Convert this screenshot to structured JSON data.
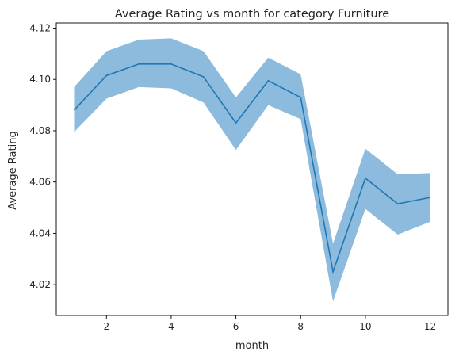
{
  "chart_data": {
    "type": "line",
    "title": "Average Rating vs month for category Furniture",
    "xlabel": "month",
    "ylabel": "Average Rating",
    "xlim": [
      0.45,
      12.55
    ],
    "ylim": [
      4.008,
      4.122
    ],
    "xticks": [
      2,
      4,
      6,
      8,
      10,
      12
    ],
    "yticks": [
      4.02,
      4.04,
      4.06,
      4.08,
      4.1,
      4.12
    ],
    "ytick_labels": [
      "4.02",
      "4.04",
      "4.06",
      "4.08",
      "4.10",
      "4.12"
    ],
    "grid": false,
    "series": [
      {
        "x": [
          1,
          2,
          3,
          4,
          5,
          6,
          7,
          8,
          9,
          10,
          11,
          12
        ],
        "values": [
          4.088,
          4.1015,
          4.106,
          4.106,
          4.101,
          4.083,
          4.0995,
          4.093,
          4.025,
          4.0615,
          4.0515,
          4.054
        ],
        "lower": [
          4.0795,
          4.0925,
          4.097,
          4.0965,
          4.091,
          4.0725,
          4.09,
          4.0845,
          4.0135,
          4.0495,
          4.0395,
          4.0445
        ],
        "upper": [
          4.097,
          4.111,
          4.1155,
          4.116,
          4.111,
          4.093,
          4.1085,
          4.102,
          4.036,
          4.073,
          4.063,
          4.0635
        ],
        "color": "#1f77b4",
        "band_color": "#8dbbdd"
      }
    ]
  }
}
